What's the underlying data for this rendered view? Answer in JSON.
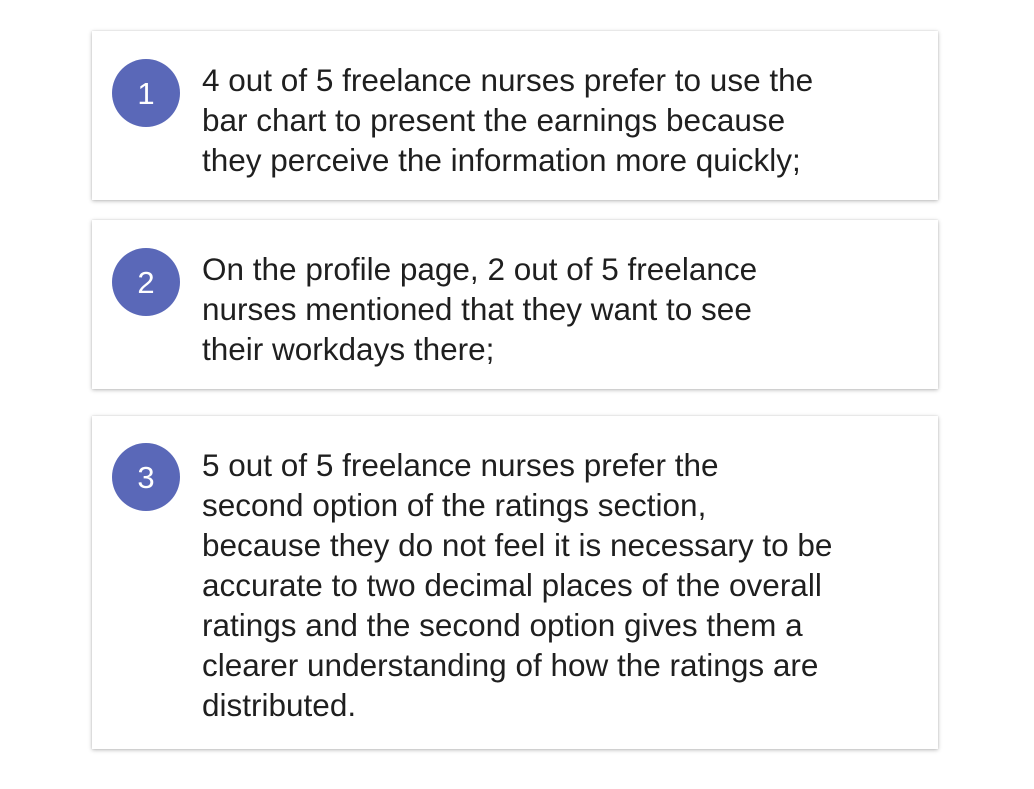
{
  "colors": {
    "badge_background": "#5a68b8",
    "text": "#1f1f1f",
    "card_background": "#ffffff"
  },
  "findings": [
    {
      "number": "1",
      "text": "4 out of 5 freelance nurses prefer to use the\nbar chart to present the earnings because\nthey perceive the information more quickly;"
    },
    {
      "number": "2",
      "text": "On the profile page, 2 out of 5 freelance\nnurses mentioned that they want to see\ntheir workdays there;"
    },
    {
      "number": "3",
      "text": "5 out of 5 freelance nurses prefer the\nsecond option of the ratings section,\nbecause they do not feel it is necessary to be\naccurate to two decimal places of the overall\nratings and the second option gives them a\nclearer understanding of how the ratings are\ndistributed."
    }
  ]
}
